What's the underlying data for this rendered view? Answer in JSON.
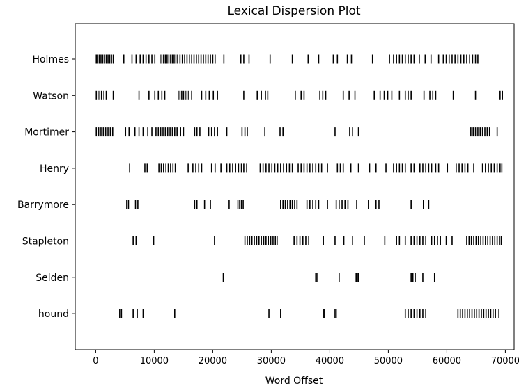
{
  "chart_data": {
    "type": "scatter",
    "title": "Lexical Dispersion Plot",
    "xlabel": "Word Offset",
    "ylabel": "",
    "xlim": [
      -3500,
      71500
    ],
    "xticks": [
      "0",
      "10000",
      "20000",
      "30000",
      "40000",
      "50000",
      "60000",
      "70000"
    ],
    "xtick_values": [
      0,
      10000,
      20000,
      30000,
      40000,
      50000,
      60000,
      70000
    ],
    "marker": "|",
    "grid": false,
    "categories": [
      "Holmes",
      "Watson",
      "Mortimer",
      "Henry",
      "Barrymore",
      "Stapleton",
      "Selden",
      "hound"
    ],
    "series": [
      {
        "name": "Holmes",
        "x": [
          100,
          300,
          600,
          900,
          1200,
          1500,
          1800,
          2100,
          2400,
          2700,
          3000,
          4800,
          6200,
          6900,
          7600,
          8100,
          8600,
          9100,
          9600,
          10100,
          11000,
          11300,
          11600,
          11900,
          12200,
          12500,
          12800,
          13100,
          13400,
          13700,
          14000,
          14400,
          14800,
          15200,
          15600,
          16000,
          16400,
          16800,
          17200,
          17600,
          18000,
          18400,
          18800,
          19200,
          19600,
          20000,
          20400,
          21900,
          24800,
          25300,
          26200,
          29800,
          33600,
          36300,
          38100,
          40600,
          41300,
          43000,
          43700,
          47300,
          50200,
          50900,
          51400,
          51900,
          52400,
          52900,
          53400,
          53900,
          54400,
          55300,
          56300,
          57300,
          58600,
          59400,
          59900,
          60400,
          60900,
          61400,
          61900,
          62400,
          62900,
          63400,
          63900,
          64400,
          64900,
          65300
        ]
      },
      {
        "name": "Watson",
        "x": [
          100,
          400,
          700,
          1000,
          1400,
          1800,
          3000,
          7400,
          9100,
          10100,
          10700,
          11300,
          11800,
          14100,
          14400,
          14700,
          15000,
          15300,
          15600,
          15900,
          16400,
          18100,
          18800,
          19400,
          20100,
          20800,
          25300,
          27600,
          28300,
          29000,
          29400,
          34100,
          35100,
          35600,
          38300,
          38800,
          39300,
          42300,
          43300,
          44300,
          47600,
          48600,
          49300,
          49900,
          50600,
          51900,
          52900,
          53400,
          53900,
          56100,
          57100,
          57600,
          58100,
          61100,
          64900,
          69100,
          69500
        ]
      },
      {
        "name": "Mortimer",
        "x": [
          100,
          500,
          900,
          1300,
          1700,
          2100,
          2500,
          2900,
          5100,
          5700,
          6700,
          7400,
          8100,
          8900,
          9600,
          10300,
          10700,
          11100,
          11500,
          11900,
          12300,
          12700,
          13100,
          13500,
          13900,
          14500,
          15000,
          16900,
          17300,
          17800,
          19300,
          19800,
          20300,
          20800,
          22400,
          25000,
          25500,
          25900,
          28900,
          31500,
          32000,
          40900,
          43400,
          43900,
          44900,
          64100,
          64500,
          64900,
          65300,
          65700,
          66100,
          66500,
          66900,
          67300,
          68600
        ]
      },
      {
        "name": "Henry",
        "x": [
          5800,
          8400,
          8800,
          10800,
          11200,
          11600,
          12000,
          12400,
          12800,
          13200,
          13600,
          15800,
          16600,
          17100,
          17600,
          18100,
          19800,
          20400,
          21400,
          22400,
          22900,
          23400,
          23900,
          24400,
          24900,
          25300,
          25800,
          28100,
          28600,
          29100,
          29600,
          30100,
          30600,
          31100,
          31600,
          32100,
          32600,
          33100,
          33600,
          34600,
          35100,
          35600,
          36100,
          36600,
          37100,
          37600,
          38100,
          38600,
          39600,
          41300,
          41800,
          42300,
          43600,
          44900,
          46800,
          47900,
          49600,
          50900,
          51400,
          51900,
          52400,
          52900,
          53900,
          54400,
          55400,
          55900,
          56400,
          56900,
          57400,
          58100,
          58600,
          60100,
          61600,
          62100,
          62600,
          63100,
          63600,
          64600,
          66100,
          66600,
          67100,
          67600,
          68100,
          68600,
          69100,
          69400
        ]
      },
      {
        "name": "Barrymore",
        "x": [
          5300,
          5600,
          6800,
          7200,
          16900,
          17300,
          18600,
          19600,
          22800,
          24300,
          24600,
          24900,
          25200,
          31600,
          32000,
          32400,
          32800,
          33200,
          33600,
          34000,
          34400,
          36100,
          36600,
          37100,
          37600,
          38100,
          39600,
          41100,
          41600,
          42100,
          42600,
          43100,
          44600,
          46600,
          47900,
          48400,
          53900,
          56000,
          56900
        ]
      },
      {
        "name": "Stapleton",
        "x": [
          6400,
          6900,
          9900,
          20300,
          25500,
          25900,
          26300,
          26700,
          27100,
          27500,
          27900,
          28300,
          28700,
          29100,
          29500,
          29900,
          30300,
          30700,
          31000,
          33900,
          34400,
          34900,
          35400,
          35900,
          36400,
          38900,
          40900,
          42400,
          43900,
          45900,
          49400,
          51400,
          51900,
          52900,
          53900,
          54400,
          54900,
          55400,
          55900,
          56400,
          57400,
          57900,
          58400,
          58900,
          59900,
          60900,
          63400,
          63800,
          64200,
          64600,
          65000,
          65400,
          65800,
          66200,
          66600,
          67000,
          67400,
          67800,
          68200,
          68600,
          69000,
          69300
        ]
      },
      {
        "name": "Selden",
        "x": [
          21800,
          37600,
          37800,
          41600,
          44500,
          44700,
          44900,
          53900,
          54200,
          54600,
          55900,
          57900
        ]
      },
      {
        "name": "hound",
        "x": [
          4100,
          4400,
          6400,
          7100,
          8100,
          13500,
          29600,
          31600,
          38900,
          39100,
          40900,
          41100,
          52900,
          53400,
          53900,
          54400,
          54900,
          55400,
          55900,
          56400,
          61900,
          62300,
          62700,
          63100,
          63500,
          63900,
          64300,
          64700,
          65100,
          65500,
          65900,
          66300,
          66700,
          67100,
          67500,
          67900,
          68300,
          68900
        ]
      }
    ]
  }
}
